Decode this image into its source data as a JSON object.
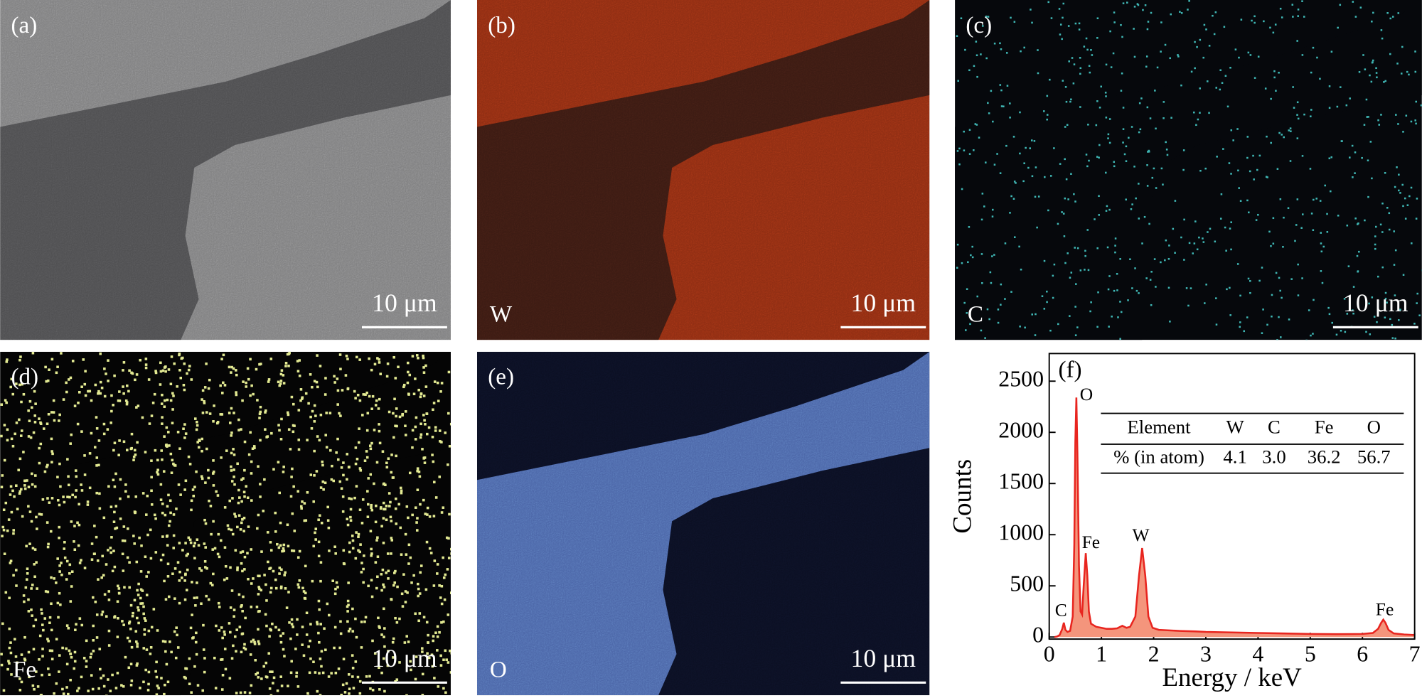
{
  "panels": [
    {
      "label": "(a)",
      "scale_bar": "10 μm"
    },
    {
      "label": "(b)",
      "element": "W",
      "scale_bar": "10 μm"
    },
    {
      "label": "(c)",
      "element": "C",
      "scale_bar": "10 μm"
    },
    {
      "label": "(d)",
      "element": "Fe",
      "scale_bar": "10 μm"
    },
    {
      "label": "(e)",
      "element": "O",
      "scale_bar": "10 μm"
    }
  ],
  "chart_data": {
    "type": "area",
    "label": "(f)",
    "xlabel": "Energy / keV",
    "ylabel": "Counts",
    "xlim": [
      0,
      7
    ],
    "ylim": [
      -20,
      2770
    ],
    "xticks": [
      0,
      1,
      2,
      3,
      4,
      5,
      6,
      7
    ],
    "yticks": [
      0,
      500,
      1000,
      1500,
      2000,
      2500
    ],
    "color": "#e8251f",
    "fill": "#f4957c",
    "x": [
      0.1,
      0.15,
      0.2,
      0.25,
      0.28,
      0.31,
      0.35,
      0.4,
      0.45,
      0.48,
      0.5,
      0.52,
      0.54,
      0.57,
      0.6,
      0.63,
      0.66,
      0.7,
      0.73,
      0.76,
      0.8,
      0.9,
      1.0,
      1.1,
      1.2,
      1.3,
      1.4,
      1.48,
      1.55,
      1.65,
      1.72,
      1.78,
      1.84,
      1.9,
      1.98,
      2.1,
      2.3,
      2.5,
      2.8,
      3.0,
      3.5,
      4.0,
      4.5,
      5.0,
      5.5,
      6.0,
      6.2,
      6.3,
      6.36,
      6.4,
      6.44,
      6.5,
      6.6,
      6.8,
      7.0
    ],
    "values": [
      0,
      5,
      20,
      80,
      140,
      70,
      50,
      60,
      200,
      900,
      1900,
      2340,
      1800,
      700,
      250,
      220,
      500,
      820,
      600,
      250,
      130,
      100,
      90,
      80,
      80,
      85,
      110,
      90,
      100,
      200,
      600,
      870,
      600,
      200,
      90,
      70,
      65,
      60,
      55,
      50,
      45,
      40,
      35,
      30,
      28,
      30,
      40,
      80,
      140,
      170,
      140,
      70,
      35,
      25,
      20
    ],
    "annotations": [
      "C",
      "O",
      "Fe",
      "W",
      "Fe"
    ],
    "table": {
      "columns": [
        "Element",
        "W",
        "C",
        "Fe",
        "O"
      ],
      "rows": [
        [
          "% (in atom)",
          "4.1",
          "3.0",
          "36.2",
          "56.7"
        ]
      ]
    }
  }
}
